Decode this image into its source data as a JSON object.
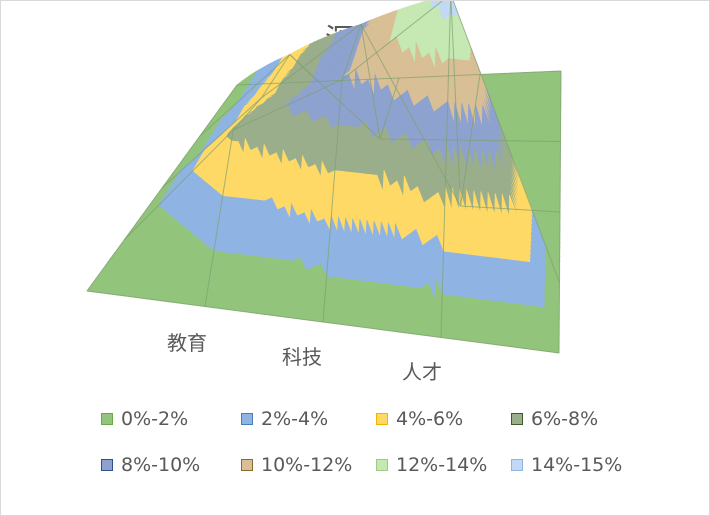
{
  "chart_data": {
    "type": "surface",
    "title": "深圳",
    "categories": [
      "教育",
      "科技",
      "人才"
    ],
    "x_series": [
      "",
      "",
      "",
      "",
      ""
    ],
    "values": [
      [
        0.0,
        0.0,
        0.0,
        0.0,
        0.0
      ],
      [
        0.0,
        4.5,
        0.0,
        0.0,
        0.0
      ],
      [
        0.0,
        5.2,
        9.5,
        0.0,
        0.0
      ],
      [
        0.0,
        6.5,
        9.8,
        15.0,
        0.0
      ],
      [
        0.0,
        0.0,
        0.0,
        0.0,
        0.0
      ]
    ],
    "zlim": [
      0,
      15
    ],
    "bands": [
      {
        "label": "0%-2%",
        "from": 0,
        "to": 2,
        "fill": "#92c47c",
        "stroke": "#6aa84f"
      },
      {
        "label": "2%-4%",
        "from": 2,
        "to": 4,
        "fill": "#8fb4e3",
        "stroke": "#4a7ebb"
      },
      {
        "label": "4%-6%",
        "from": 4,
        "to": 6,
        "fill": "#ffd966",
        "stroke": "#f4b400"
      },
      {
        "label": "6%-8%",
        "from": 6,
        "to": 8,
        "fill": "#9bae8c",
        "stroke": "#3d5a2a"
      },
      {
        "label": "8%-10%",
        "from": 8,
        "to": 10,
        "fill": "#8ea2cf",
        "stroke": "#2f4f8f"
      },
      {
        "label": "10%-12%",
        "from": 10,
        "to": 12,
        "fill": "#d9bf95",
        "stroke": "#8a6a2a"
      },
      {
        "label": "12%-14%",
        "from": 12,
        "to": 14,
        "fill": "#c6e9b4",
        "stroke": "#9ccc80"
      },
      {
        "label": "14%-15%",
        "from": 14,
        "to": 15,
        "fill": "#c2d9f5",
        "stroke": "#8fb4e3"
      }
    ]
  }
}
